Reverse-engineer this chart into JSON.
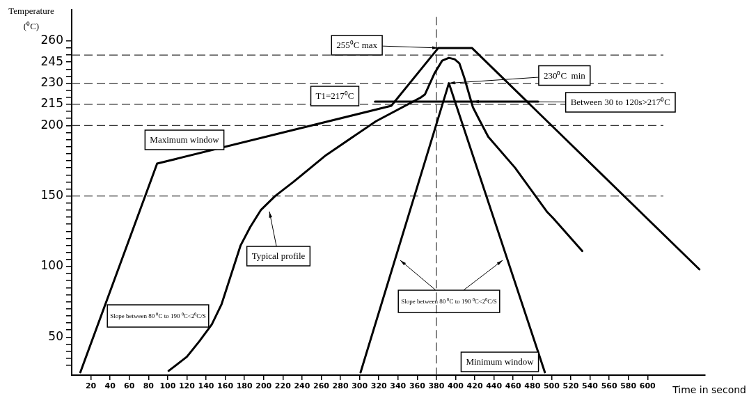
{
  "chart_data": {
    "type": "line",
    "xlabel": "Time in second",
    "ylabel": "Temperature (⁰C)",
    "xlim": [
      0,
      660
    ],
    "ylim": [
      23,
      282
    ],
    "xticks": [
      20,
      40,
      60,
      80,
      100,
      120,
      140,
      160,
      180,
      200,
      220,
      240,
      260,
      280,
      300,
      320,
      340,
      360,
      380,
      400,
      420,
      440,
      460,
      480,
      500,
      520,
      540,
      560,
      580,
      600
    ],
    "yticks": [
      {
        "value": 30,
        "label": null
      },
      {
        "value": 35,
        "label": null
      },
      {
        "value": 40,
        "label": null
      },
      {
        "value": 45,
        "label": null
      },
      50,
      {
        "value": 55,
        "label": null
      },
      {
        "value": 60,
        "label": null
      },
      {
        "value": 65,
        "label": null
      },
      {
        "value": 70,
        "label": null
      },
      {
        "value": 75,
        "label": null
      },
      {
        "value": 80,
        "label": null
      },
      {
        "value": 85,
        "label": null
      },
      {
        "value": 90,
        "label": null
      },
      {
        "value": 95,
        "label": null
      },
      100,
      {
        "value": 105,
        "label": null
      },
      {
        "value": 110,
        "label": null
      },
      {
        "value": 115,
        "label": null
      },
      {
        "value": 120,
        "label": null
      },
      {
        "value": 125,
        "label": null
      },
      {
        "value": 130,
        "label": null
      },
      {
        "value": 135,
        "label": null
      },
      {
        "value": 140,
        "label": null
      },
      {
        "value": 145,
        "label": null
      },
      150,
      {
        "value": 155,
        "label": null
      },
      {
        "value": 160,
        "label": null
      },
      {
        "value": 165,
        "label": null
      },
      {
        "value": 170,
        "label": null
      },
      {
        "value": 175,
        "label": null
      },
      {
        "value": 180,
        "label": null
      },
      {
        "value": 185,
        "label": null
      },
      {
        "value": 190,
        "label": null
      },
      {
        "value": 195,
        "label": null
      },
      200,
      {
        "value": 205,
        "label": null
      },
      {
        "value": 210,
        "label": null
      },
      215,
      {
        "value": 220,
        "label": null
      },
      {
        "value": 225,
        "label": null
      },
      230,
      {
        "value": 235,
        "label": null
      },
      {
        "value": 240,
        "label": null
      },
      245,
      {
        "value": 250,
        "label": null
      },
      {
        "value": 255,
        "label": null
      },
      260
    ],
    "grid": false,
    "legend": false,
    "marker": "none",
    "line_style": "solid",
    "series": [
      {
        "color": "#000000",
        "x": [
          9,
          89,
          333,
          382,
          417,
          654
        ],
        "values": [
          25,
          173,
          214,
          255,
          255,
          98
        ]
      },
      {
        "color": "#000000",
        "x": [
          101,
          120,
          133,
          146,
          156,
          176,
          186,
          197,
          212,
          231,
          265,
          317,
          364,
          368,
          378,
          386,
          393,
          399,
          404,
          409,
          418,
          424,
          434,
          462,
          495,
          502,
          532
        ],
        "values": [
          26,
          36,
          47,
          59,
          73,
          115,
          128,
          140,
          150,
          160,
          179,
          203,
          220,
          222,
          237,
          246,
          248,
          247,
          244,
          234,
          213,
          205,
          192,
          170,
          139,
          134,
          111
        ]
      },
      {
        "color": "#000000",
        "x": [
          301,
          393,
          493
        ],
        "values": [
          25,
          230,
          25
        ]
      },
      {
        "color": "#000000",
        "x": [
          316,
          486
        ],
        "values": [
          217,
          217
        ]
      }
    ],
    "ref_lines": [
      {
        "axis": "y",
        "value": 250,
        "label": null,
        "color": "#333333",
        "line_style": "dashed"
      },
      {
        "axis": "y",
        "value": 230,
        "label": null,
        "color": "#333333",
        "line_style": "dashed"
      },
      {
        "axis": "y",
        "value": 215,
        "label": null,
        "color": "#333333",
        "line_style": "dashed"
      },
      {
        "axis": "y",
        "value": 200,
        "label": null,
        "color": "#333333",
        "line_style": "dashed"
      },
      {
        "axis": "y",
        "value": 150,
        "label": null,
        "color": "#333333",
        "line_style": "dashed"
      },
      {
        "axis": "x",
        "value": 380,
        "label": null,
        "color": "#333333",
        "line_style": "dashed"
      }
    ],
    "annotations": [
      {
        "text": "255⁰C max",
        "x": 382,
        "y": 255
      },
      {
        "text": "230⁰C  min",
        "x": 393,
        "y": 230
      },
      {
        "text": "Between 30 to 120s>217⁰C",
        "x": 418,
        "y": 217
      },
      "T1=217⁰C",
      "Maximum window",
      "Typical profile",
      "Slope between 80 ⁰C to 190 ⁰C<2⁰C/S",
      "Slope between 80 ⁰C to 190 ⁰C<2⁰C/S",
      "Minimum window"
    ]
  }
}
